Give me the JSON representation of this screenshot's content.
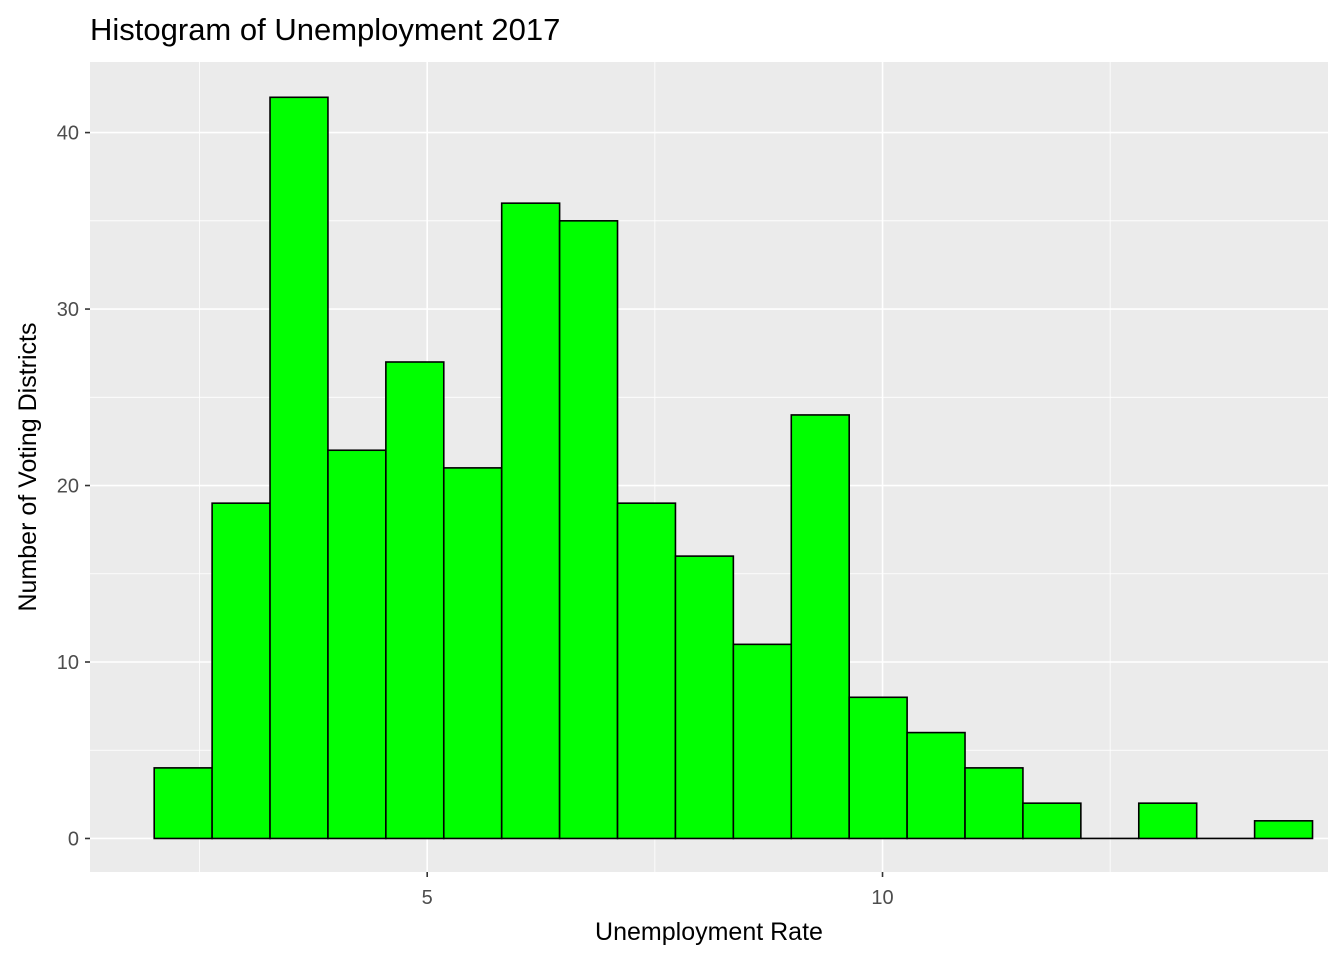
{
  "chart_data": {
    "type": "bar",
    "title": "Histogram of Unemployment 2017",
    "xlabel": "Unemployment Rate",
    "ylabel": "Number of Voting Districts",
    "bin_width": 0.636,
    "bin_centers": [
      2.32,
      2.956,
      3.592,
      4.228,
      4.864,
      5.5,
      6.136,
      6.772,
      7.408,
      8.044,
      8.68,
      9.316,
      9.952,
      10.588,
      11.224,
      11.86,
      12.496,
      13.132,
      13.768,
      14.404
    ],
    "counts": [
      4,
      19,
      42,
      22,
      27,
      21,
      36,
      35,
      19,
      16,
      11,
      24,
      8,
      6,
      4,
      2,
      0,
      2,
      0,
      1
    ],
    "xlim": [
      1.297,
      14.892
    ],
    "ylim": [
      -1.9,
      44
    ],
    "x_ticks": [
      5,
      10
    ],
    "x_tick_labels": [
      "5",
      "10"
    ],
    "y_ticks": [
      0,
      10,
      20,
      30,
      40
    ],
    "y_tick_labels": [
      "0",
      "10",
      "20",
      "30",
      "40"
    ],
    "bar_fill": "#00ff00",
    "bar_outline": "#000000",
    "panel_background": "#ebebeb",
    "grid_color": "#ffffff",
    "grid": true,
    "legend": "none"
  }
}
